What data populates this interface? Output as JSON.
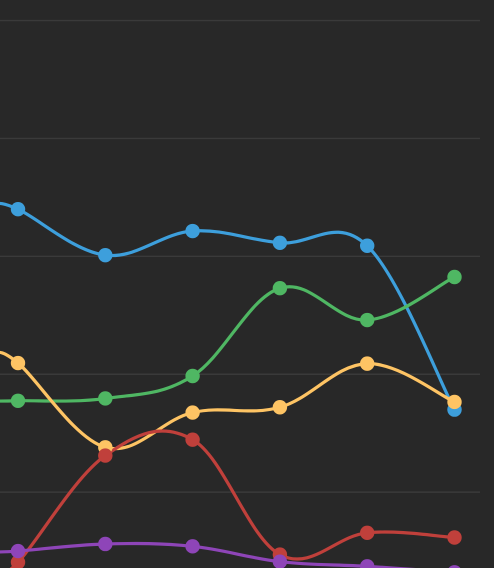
{
  "background": "#282828",
  "gridline_color": "#3a3a3a",
  "chart_data": {
    "type": "line",
    "smooth": true,
    "markers": true,
    "grid": true,
    "legend": "none",
    "x": [
      0,
      1,
      2,
      3,
      4,
      5
    ],
    "ylim": [
      0,
      100
    ],
    "yticks": [
      20,
      40,
      60,
      80,
      100
    ],
    "series": [
      {
        "color": "#3d9fdc",
        "values": [
          68,
          60.2,
          64.3,
          62.3,
          61.8,
          34
        ]
      },
      {
        "color": "#4fb763",
        "values": [
          35.5,
          35.9,
          39.7,
          54.6,
          49.2,
          56.5
        ]
      },
      {
        "color": "#fec464",
        "values": [
          41.9,
          27.6,
          33.5,
          34.4,
          41.8,
          35.3
        ]
      },
      {
        "color": "#c0403b",
        "values": [
          8.1,
          26.2,
          28.9,
          9.4,
          13.1,
          12.3
        ]
      },
      {
        "color": "#8e45b8",
        "values": [
          10,
          11.2,
          10.8,
          8.2,
          7.4,
          6.4
        ]
      }
    ]
  }
}
